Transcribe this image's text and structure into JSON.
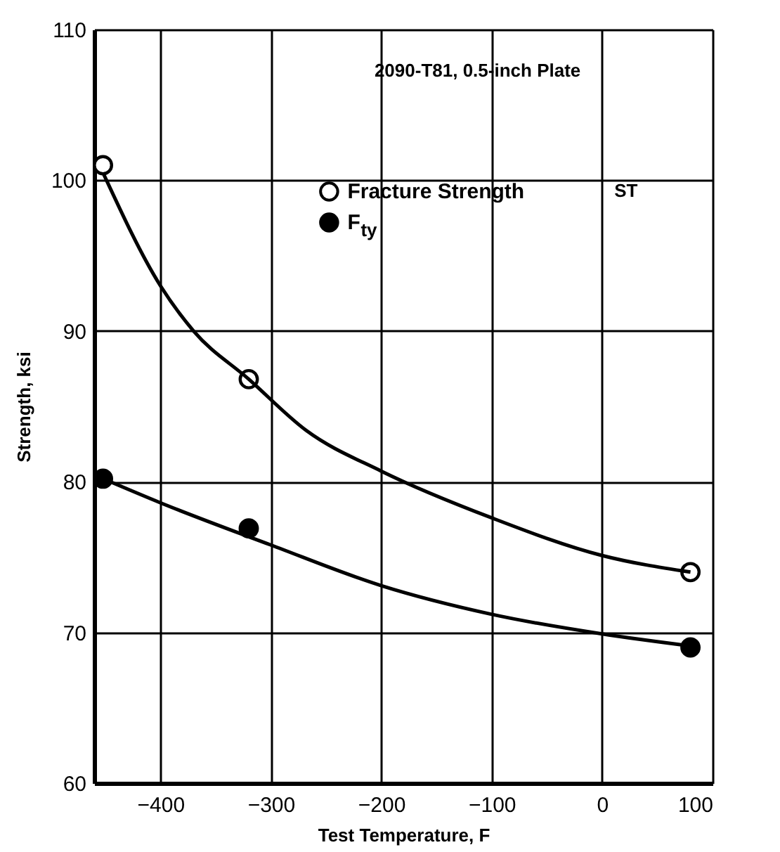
{
  "chart_data": {
    "type": "scatter",
    "xlabel": "Test Temperature, F",
    "ylabel": "Strength, ksi",
    "annotations": [
      "2090-T81, 0.5-inch Plate",
      "ST"
    ],
    "xlim": [
      -460,
      100
    ],
    "xticks": [
      -400,
      -300,
      -200,
      -100,
      0,
      100
    ],
    "ylim": [
      60,
      110
    ],
    "yticks": [
      60,
      70,
      80,
      90,
      100,
      110
    ],
    "grid": true,
    "legend": "top",
    "marker": "circle",
    "series": [
      {
        "name": "Fracture Strength",
        "color": "#ffffff",
        "x": [
          -452,
          -320,
          80
        ],
        "values": [
          101,
          86.8,
          74
        ]
      },
      {
        "name": "F$_{ty}$",
        "color": "#000000",
        "x": [
          -452,
          -320,
          80
        ],
        "values": [
          80.2,
          76.9,
          69
        ]
      },
      {
        "type": "line",
        "color": "#000000",
        "marker": "none",
        "x": [
          -452,
          -400,
          -370,
          -320,
          -268,
          -200,
          -100,
          0,
          80
        ],
        "values": [
          100.5,
          93,
          90,
          86.8,
          83.4,
          80.7,
          77.6,
          75.1,
          74
        ]
      },
      {
        "type": "line",
        "color": "#000000",
        "marker": "none",
        "x": [
          -452,
          -400,
          -300,
          -200,
          -100,
          0,
          80
        ],
        "values": [
          80.2,
          78.6,
          75.8,
          73.1,
          71.2,
          69.9,
          69.1
        ]
      }
    ]
  }
}
